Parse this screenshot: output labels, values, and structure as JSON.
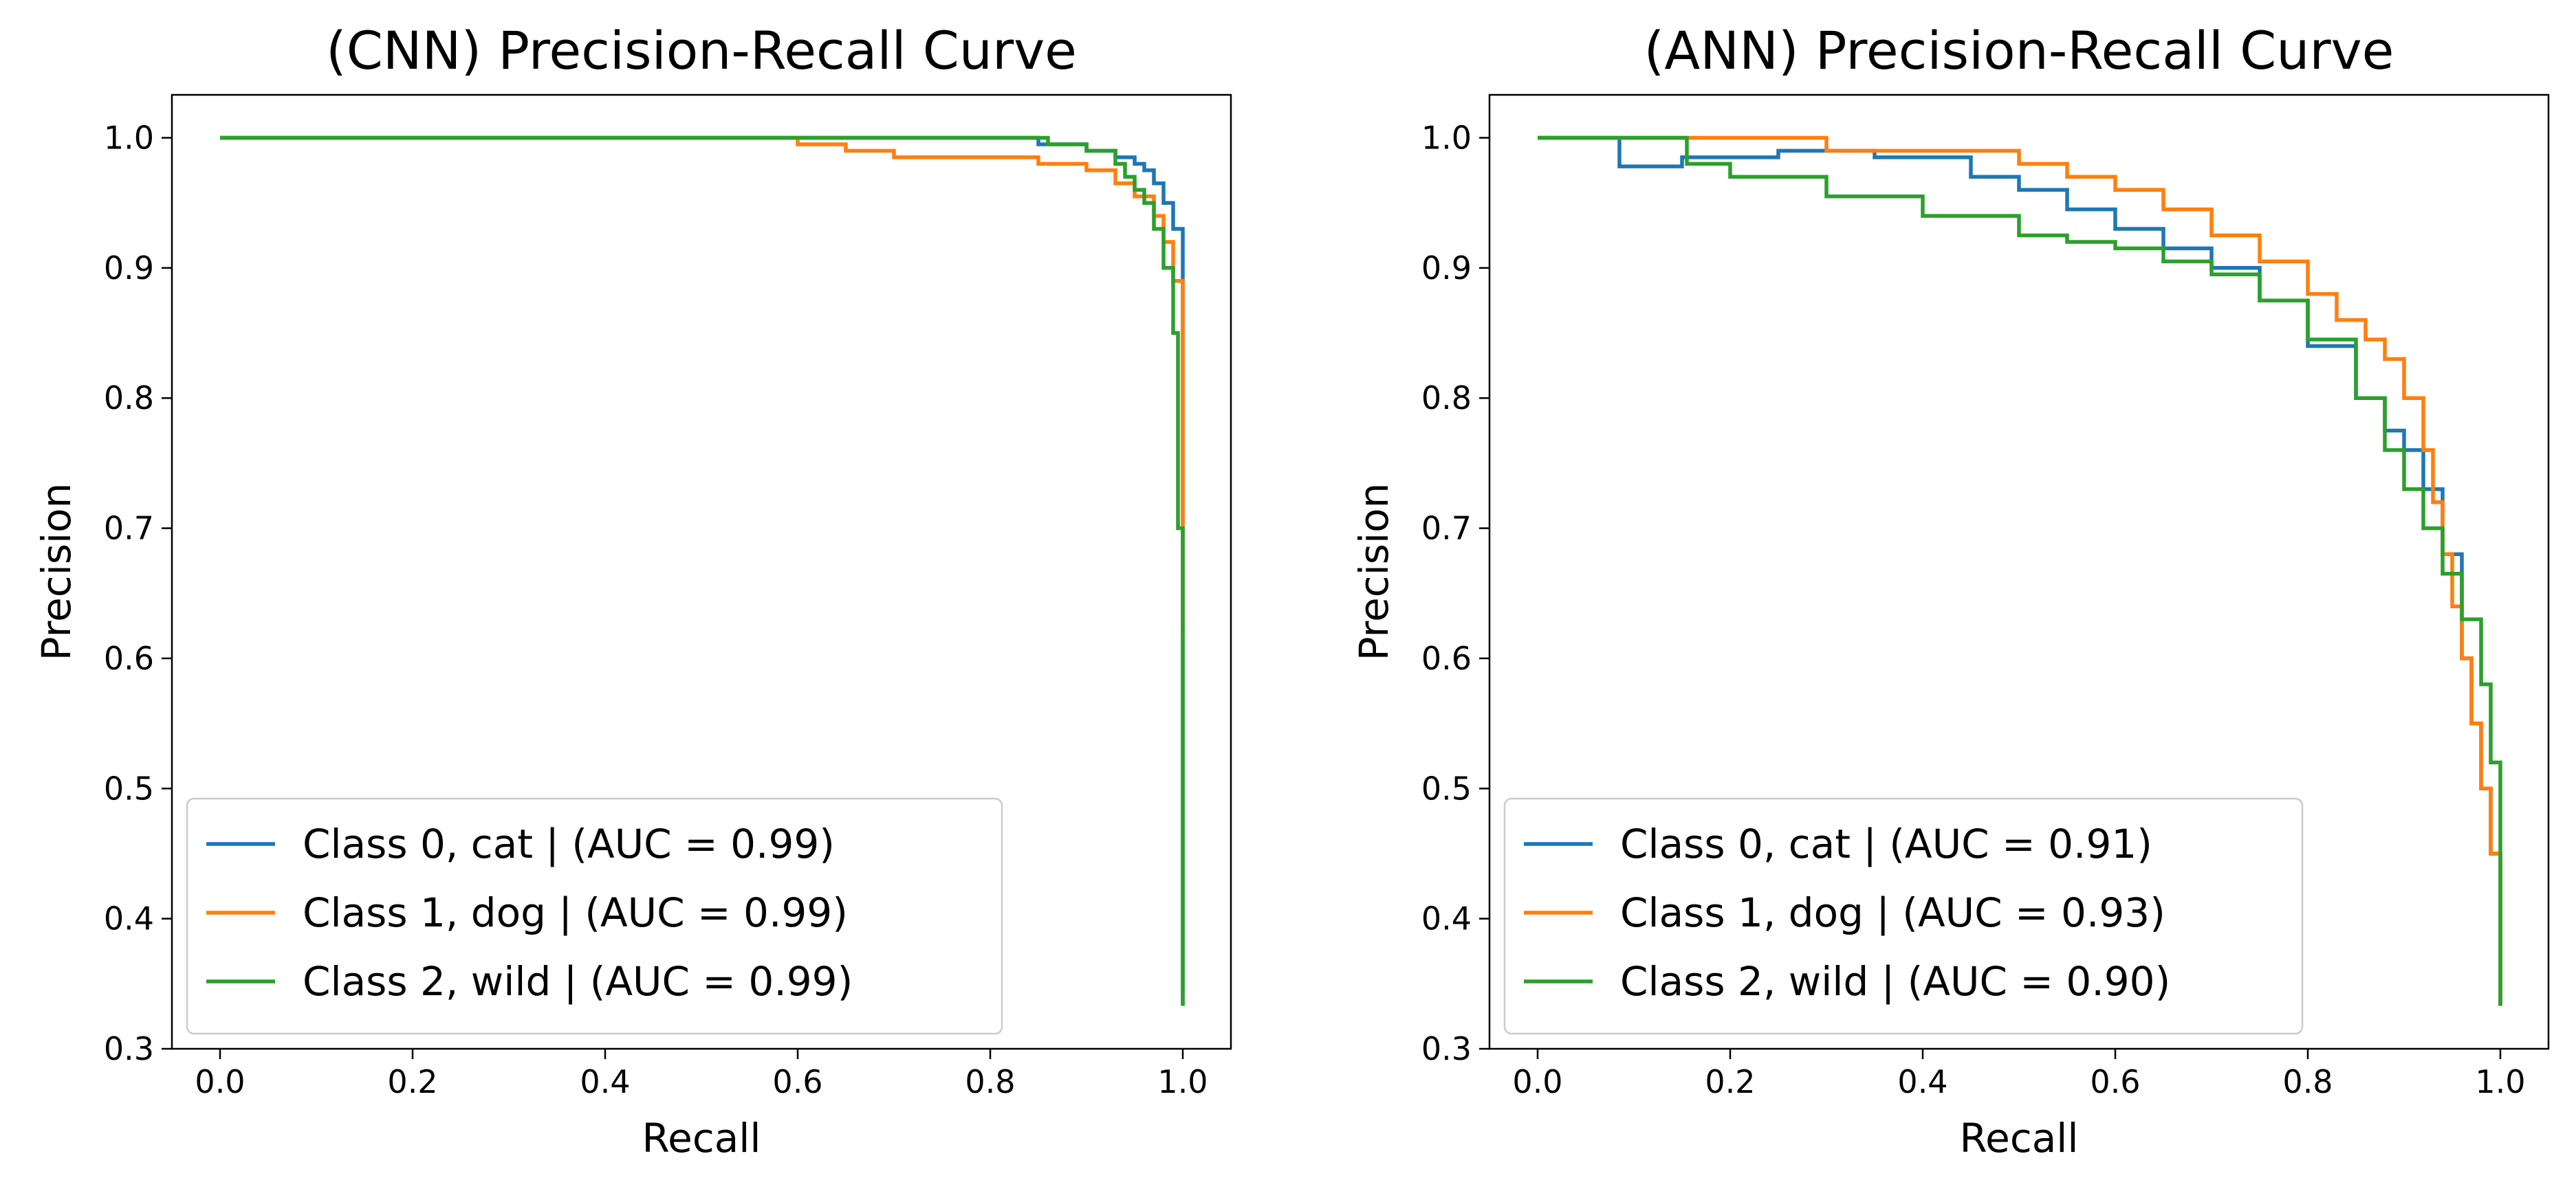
{
  "colors": {
    "class0": "#1f77b4",
    "class1": "#ff7f0e",
    "class2": "#2ca02c"
  },
  "chart_data": [
    {
      "type": "line",
      "title": "(CNN) Precision-Recall Curve",
      "xlabel": "Recall",
      "ylabel": "Precision",
      "xlim": [
        -0.05,
        1.05
      ],
      "ylim": [
        0.3,
        1.033
      ],
      "xticks": [
        0.0,
        0.2,
        0.4,
        0.6,
        0.8,
        1.0
      ],
      "xtick_labels": [
        "0.0",
        "0.2",
        "0.4",
        "0.6",
        "0.8",
        "1.0"
      ],
      "yticks": [
        0.3,
        0.4,
        0.5,
        0.6,
        0.7,
        0.8,
        0.9,
        1.0
      ],
      "ytick_labels": [
        "0.3",
        "0.4",
        "0.5",
        "0.6",
        "0.7",
        "0.8",
        "0.9",
        "1.0"
      ],
      "grid": false,
      "legend": "lower-left",
      "series": [
        {
          "name": "Class 0, cat | (AUC = 0.99)",
          "color": "#1f77b4",
          "x": [
            0.0,
            0.8,
            0.85,
            0.9,
            0.93,
            0.95,
            0.96,
            0.97,
            0.98,
            0.99,
            1.0,
            1.0
          ],
          "y": [
            1.0,
            1.0,
            0.995,
            0.99,
            0.985,
            0.98,
            0.975,
            0.965,
            0.95,
            0.93,
            0.7,
            0.333
          ]
        },
        {
          "name": "Class 1, dog | (AUC = 0.99)",
          "color": "#ff7f0e",
          "x": [
            0.0,
            0.5,
            0.6,
            0.65,
            0.7,
            0.75,
            0.8,
            0.85,
            0.9,
            0.93,
            0.95,
            0.97,
            0.98,
            0.99,
            1.0,
            1.0
          ],
          "y": [
            1.0,
            1.0,
            0.995,
            0.99,
            0.985,
            0.985,
            0.985,
            0.98,
            0.975,
            0.965,
            0.955,
            0.94,
            0.92,
            0.89,
            0.8,
            0.62
          ]
        },
        {
          "name": "Class 2, wild | (AUC = 0.99)",
          "color": "#2ca02c",
          "x": [
            0.0,
            0.8,
            0.86,
            0.9,
            0.93,
            0.94,
            0.95,
            0.96,
            0.97,
            0.98,
            0.99,
            0.995,
            1.0,
            1.0
          ],
          "y": [
            1.0,
            1.0,
            0.995,
            0.99,
            0.98,
            0.97,
            0.96,
            0.95,
            0.93,
            0.9,
            0.85,
            0.7,
            0.6,
            0.333
          ]
        }
      ]
    },
    {
      "type": "line",
      "title": "(ANN) Precision-Recall Curve",
      "xlabel": "Recall",
      "ylabel": "Precision",
      "xlim": [
        -0.05,
        1.05
      ],
      "ylim": [
        0.3,
        1.033
      ],
      "xticks": [
        0.0,
        0.2,
        0.4,
        0.6,
        0.8,
        1.0
      ],
      "xtick_labels": [
        "0.0",
        "0.2",
        "0.4",
        "0.6",
        "0.8",
        "1.0"
      ],
      "yticks": [
        0.3,
        0.4,
        0.5,
        0.6,
        0.7,
        0.8,
        0.9,
        1.0
      ],
      "ytick_labels": [
        "0.3",
        "0.4",
        "0.5",
        "0.6",
        "0.7",
        "0.8",
        "0.9",
        "1.0"
      ],
      "grid": false,
      "legend": "lower-left",
      "series": [
        {
          "name": "Class 0, cat | (AUC = 0.91)",
          "color": "#1f77b4",
          "x": [
            0.0,
            0.085,
            0.085,
            0.15,
            0.25,
            0.35,
            0.45,
            0.5,
            0.55,
            0.6,
            0.65,
            0.7,
            0.75,
            0.8,
            0.85,
            0.88,
            0.9,
            0.92,
            0.94,
            0.96,
            0.97,
            0.98,
            0.99,
            1.0
          ],
          "y": [
            1.0,
            1.0,
            0.978,
            0.985,
            0.99,
            0.985,
            0.97,
            0.96,
            0.945,
            0.93,
            0.915,
            0.9,
            0.875,
            0.84,
            0.8,
            0.775,
            0.76,
            0.73,
            0.68,
            0.6,
            0.55,
            0.5,
            0.45,
            0.333
          ]
        },
        {
          "name": "Class 1, dog | (AUC = 0.93)",
          "color": "#ff7f0e",
          "x": [
            0.0,
            0.25,
            0.3,
            0.4,
            0.5,
            0.55,
            0.6,
            0.65,
            0.7,
            0.75,
            0.8,
            0.83,
            0.86,
            0.88,
            0.9,
            0.92,
            0.93,
            0.94,
            0.95,
            0.96,
            0.97,
            0.98,
            0.99,
            1.0
          ],
          "y": [
            1.0,
            1.0,
            0.99,
            0.99,
            0.98,
            0.97,
            0.96,
            0.945,
            0.925,
            0.905,
            0.88,
            0.86,
            0.845,
            0.83,
            0.8,
            0.76,
            0.72,
            0.68,
            0.64,
            0.6,
            0.55,
            0.5,
            0.45,
            0.333
          ]
        },
        {
          "name": "Class 2, wild | (AUC = 0.90)",
          "color": "#2ca02c",
          "x": [
            0.0,
            0.155,
            0.155,
            0.2,
            0.3,
            0.4,
            0.5,
            0.55,
            0.6,
            0.65,
            0.7,
            0.75,
            0.8,
            0.85,
            0.88,
            0.9,
            0.92,
            0.94,
            0.96,
            0.98,
            0.99,
            1.0,
            1.0
          ],
          "y": [
            1.0,
            1.0,
            0.98,
            0.97,
            0.955,
            0.94,
            0.925,
            0.92,
            0.915,
            0.905,
            0.895,
            0.875,
            0.845,
            0.8,
            0.76,
            0.73,
            0.7,
            0.665,
            0.63,
            0.58,
            0.52,
            0.45,
            0.333
          ]
        }
      ]
    }
  ]
}
